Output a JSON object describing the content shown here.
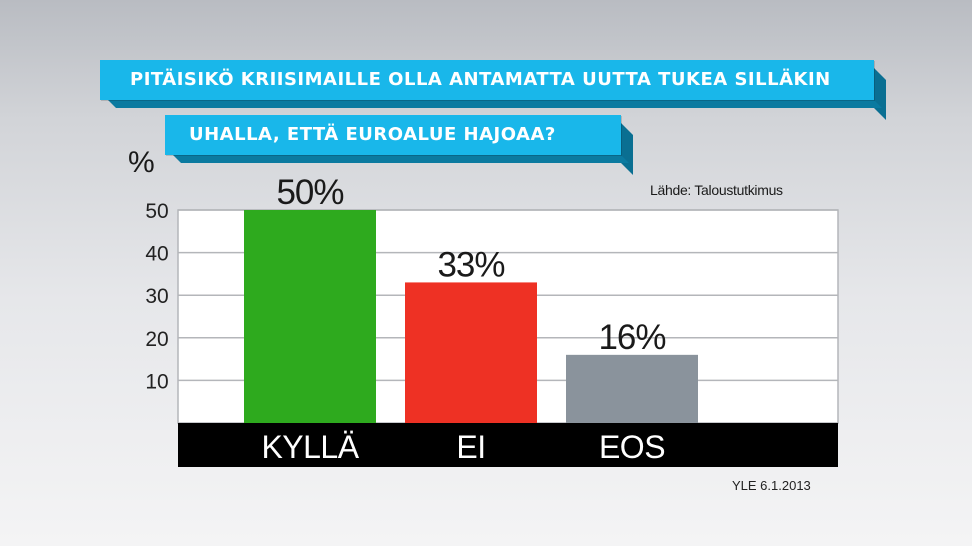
{
  "title_line1": "PITÄISIKÖ KRIISIMAILLE OLLA ANTAMATTA UUTTA TUKEA SILLÄKIN",
  "title_line2": "UHALLA, ETTÄ EUROALUE HAJOAA?",
  "y_unit": "%",
  "source": "Lähde: Taloustutkimus",
  "footer": "YLE  6.1.2013",
  "colors": {
    "banner": "#19b7ea",
    "kylla": "#2eaa1e",
    "ei": "#ee3124",
    "eos": "#8a939c",
    "axis_band": "#000000"
  },
  "chart_data": {
    "type": "bar",
    "title": "PITÄISIKÖ KRIISIMAILLE OLLA ANTAMATTA UUTTA TUKEA SILLÄKIN UHALLA, ETTÄ EUROALUE HAJOAA?",
    "ylabel": "%",
    "categories": [
      "KYLLÄ",
      "EI",
      "EOS"
    ],
    "values": [
      50,
      33,
      16
    ],
    "value_labels": [
      "50%",
      "33%",
      "16%"
    ],
    "yticks": [
      10,
      20,
      30,
      40,
      50
    ],
    "ylim": [
      0,
      50
    ],
    "grid": true,
    "legend": "none"
  }
}
